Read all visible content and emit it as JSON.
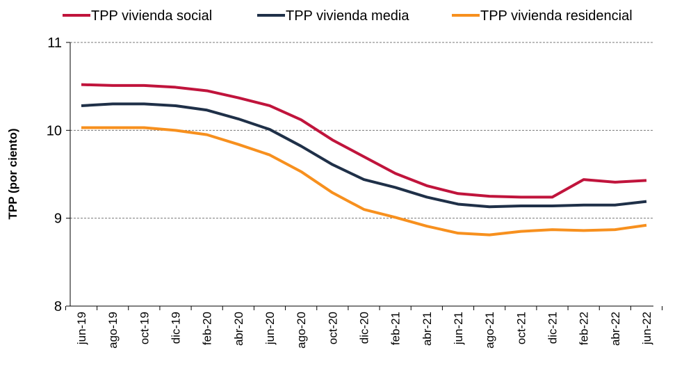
{
  "chart_data": {
    "type": "line",
    "ylabel": "TPP (por ciento)",
    "categories": [
      "jun-19",
      "ago-19",
      "oct-19",
      "dic-19",
      "feb-20",
      "abr-20",
      "jun-20",
      "ago-20",
      "oct-20",
      "dic-20",
      "feb-21",
      "abr-21",
      "jun-21",
      "ago-21",
      "oct-21",
      "dic-21",
      "feb-22",
      "abr-22",
      "jun-22"
    ],
    "series": [
      {
        "name": "TPP vivienda social",
        "color": "#c0143c",
        "values": [
          10.52,
          10.51,
          10.51,
          10.49,
          10.45,
          10.37,
          10.28,
          10.12,
          9.89,
          9.7,
          9.51,
          9.37,
          9.28,
          9.25,
          9.24,
          9.24,
          9.44,
          9.41,
          9.43
        ]
      },
      {
        "name": "TPP vivienda media",
        "color": "#1f3048",
        "values": [
          10.28,
          10.3,
          10.3,
          10.28,
          10.23,
          10.13,
          10.01,
          9.82,
          9.61,
          9.44,
          9.35,
          9.24,
          9.16,
          9.13,
          9.14,
          9.14,
          9.15,
          9.15,
          9.19
        ]
      },
      {
        "name": "TPP vivienda residencial",
        "color": "#f7901e",
        "values": [
          10.03,
          10.03,
          10.03,
          10.0,
          9.95,
          9.84,
          9.72,
          9.53,
          9.29,
          9.1,
          9.01,
          8.91,
          8.83,
          8.81,
          8.85,
          8.87,
          8.86,
          8.87,
          8.92
        ]
      }
    ],
    "ylim": [
      8,
      11
    ],
    "yticks": [
      8,
      9,
      10,
      11
    ],
    "grid": true,
    "legend": "top"
  }
}
